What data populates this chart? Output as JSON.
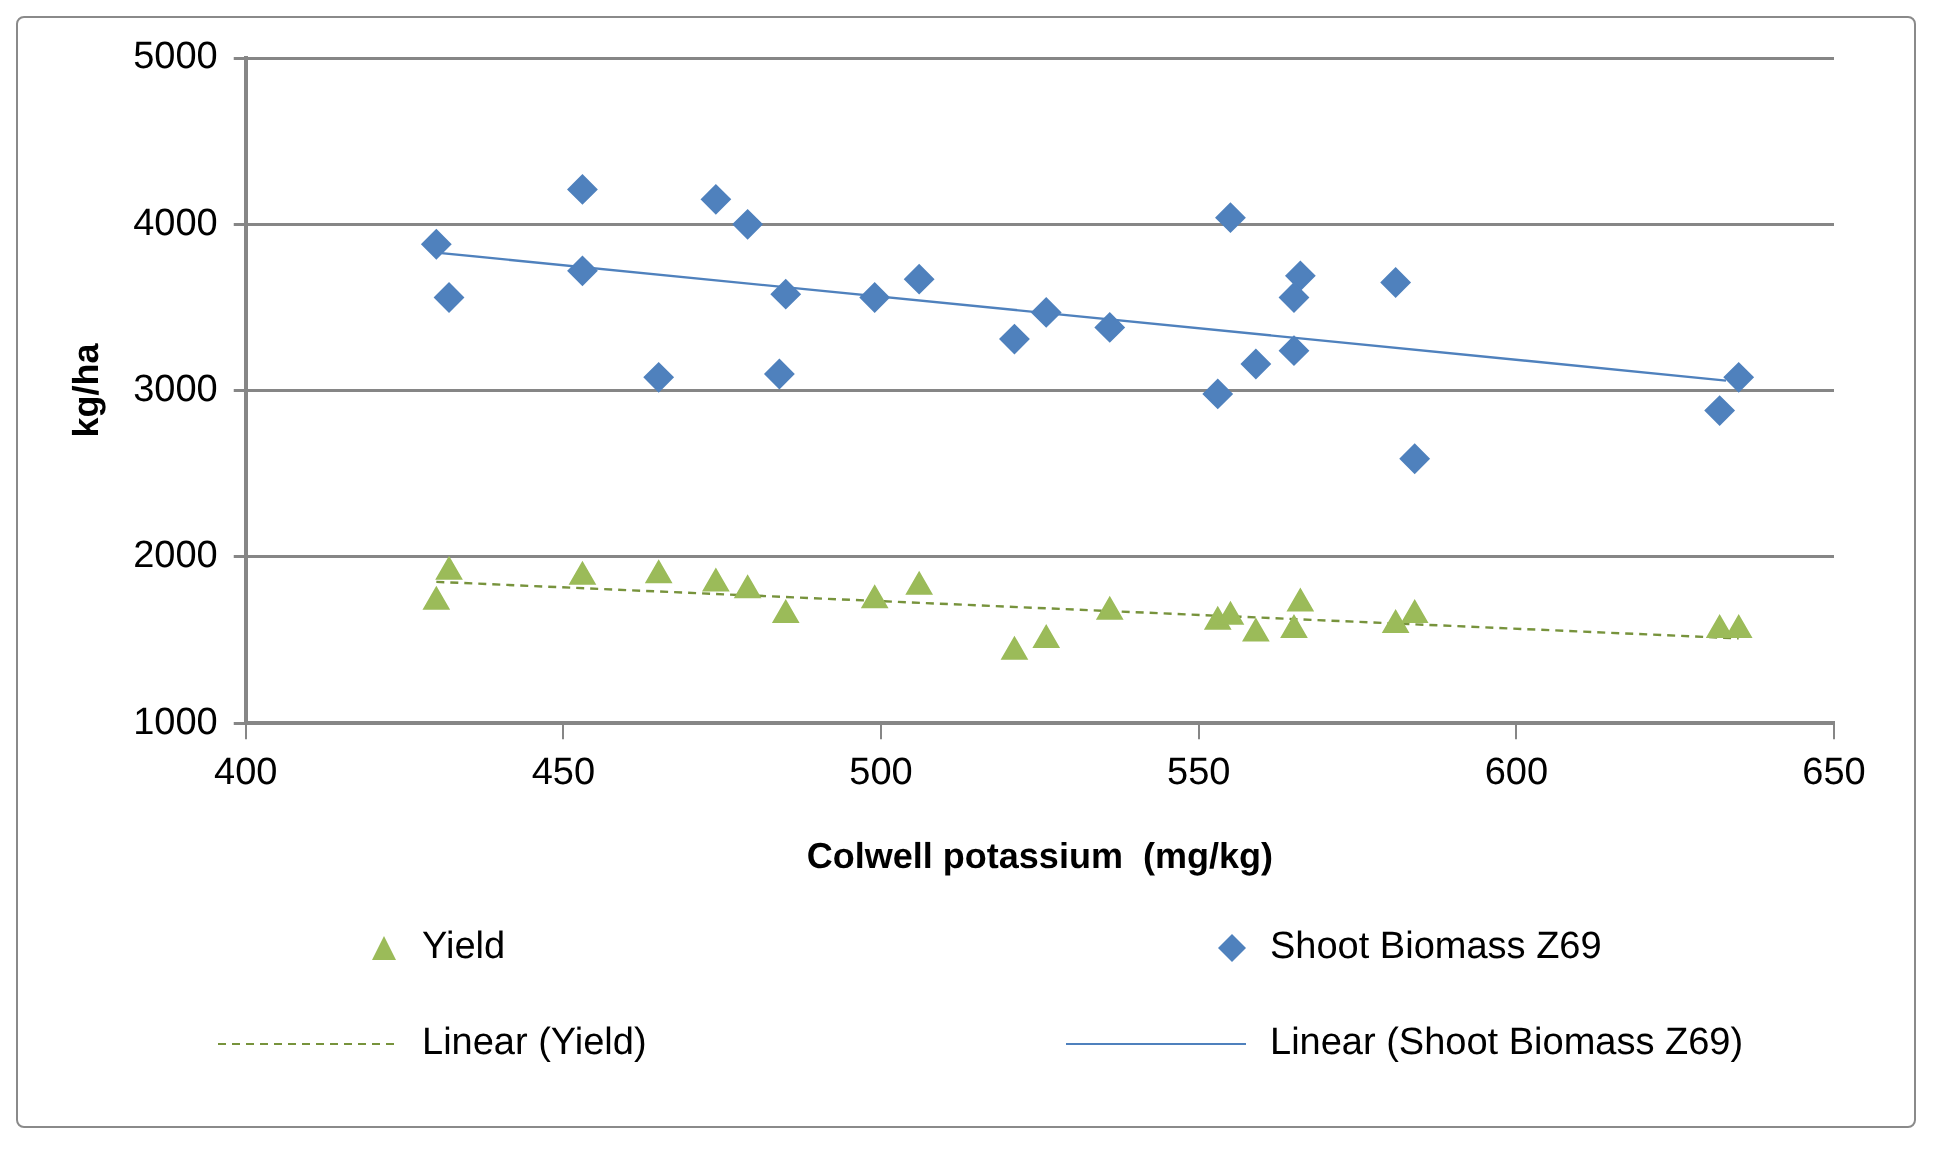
{
  "chart_data": {
    "type": "scatter",
    "xlabel": "Colwell potassium  (mg/kg)",
    "ylabel": "kg/ha",
    "xlim": [
      400,
      650
    ],
    "xticks": [
      400,
      450,
      500,
      550,
      600,
      650
    ],
    "ylim": [
      1000,
      5000
    ],
    "yticks": [
      1000,
      2000,
      3000,
      4000,
      5000
    ],
    "grid": "y",
    "legend": "bottom",
    "series": [
      {
        "name": "Yield",
        "marker": "triangle",
        "color": "#9bbb59",
        "x": [
          432,
          430,
          453,
          465,
          474,
          479,
          485,
          499,
          506,
          521,
          526,
          536,
          553,
          555,
          559,
          566,
          565,
          581,
          584,
          632,
          635
        ],
        "values": [
          1910,
          1730,
          1880,
          1890,
          1840,
          1800,
          1650,
          1740,
          1820,
          1430,
          1500,
          1670,
          1610,
          1640,
          1540,
          1720,
          1560,
          1590,
          1650,
          1560,
          1560
        ]
      },
      {
        "name": "Shoot Biomass Z69",
        "marker": "diamond",
        "color": "#4f81bd",
        "x": [
          430,
          432,
          453,
          453,
          465,
          474,
          479,
          485,
          484,
          499,
          506,
          521,
          526,
          536,
          555,
          566,
          565,
          581,
          559,
          565,
          553,
          584,
          635,
          632
        ],
        "values": [
          3880,
          3560,
          4210,
          3720,
          3080,
          4150,
          4000,
          3580,
          3100,
          3560,
          3670,
          3310,
          3470,
          3380,
          4040,
          3690,
          3560,
          3650,
          3160,
          3240,
          2980,
          2590,
          3080,
          2880
        ]
      },
      {
        "name": "Linear (Yield)",
        "type": "line",
        "line_style": "dashed",
        "marker": "none",
        "color": "#77933c",
        "x": [
          430,
          635
        ],
        "values": [
          1850,
          1510
        ]
      },
      {
        "name": "Linear (Shoot Biomass Z69)",
        "type": "line",
        "line_style": "solid",
        "marker": "none",
        "color": "#4f81bd",
        "x": [
          430,
          633
        ],
        "values": [
          3830,
          3060
        ]
      }
    ]
  }
}
